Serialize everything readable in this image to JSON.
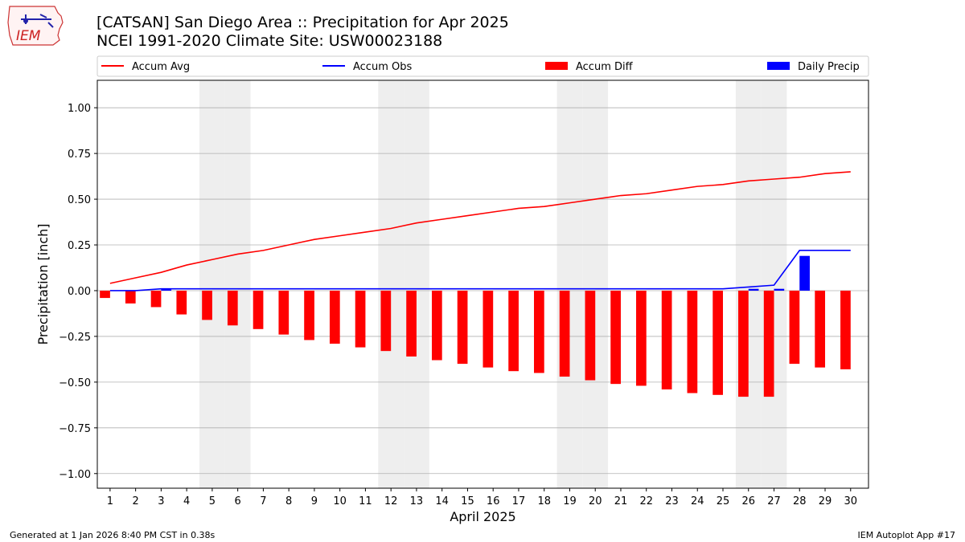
{
  "header": {
    "title_line1": "[CATSAN] San Diego Area :: Precipitation for Apr 2025",
    "title_line2": "NCEI 1991-2020 Climate Site: USW00023188"
  },
  "logo": {
    "text": "IEM"
  },
  "footer": {
    "left": "Generated at 1 Jan 2026 8:40 PM CST in 0.38s",
    "right": "IEM Autoplot App #17"
  },
  "colors": {
    "avg": "#ff0000",
    "obs": "#0000ff",
    "diff": "#ff0000",
    "daily": "#0000ff",
    "weekend": "#eeeeee",
    "grid": "#b0b0b0"
  },
  "chart_data": {
    "type": "bar",
    "xlabel": "April 2025",
    "ylabel": "Precipitation [inch]",
    "ylim": [
      -1.08,
      1.15
    ],
    "yticks": [
      "1.00",
      "0.75",
      "0.50",
      "0.25",
      "0.00",
      "−0.25",
      "−0.50",
      "−0.75",
      "−1.00"
    ],
    "ytick_values": [
      1.0,
      0.75,
      0.5,
      0.25,
      0.0,
      -0.25,
      -0.5,
      -0.75,
      -1.0
    ],
    "categories": [
      "1",
      "2",
      "3",
      "4",
      "5",
      "6",
      "7",
      "8",
      "9",
      "10",
      "11",
      "12",
      "13",
      "14",
      "15",
      "16",
      "17",
      "18",
      "19",
      "20",
      "21",
      "22",
      "23",
      "24",
      "25",
      "26",
      "27",
      "28",
      "29",
      "30"
    ],
    "weekend_days": [
      5,
      6,
      12,
      13,
      19,
      20,
      26,
      27
    ],
    "legend": [
      "Accum Avg",
      "Accum Obs",
      "Accum Diff",
      "Daily Precip"
    ],
    "series": [
      {
        "name": "Accum Avg",
        "kind": "line",
        "values": [
          0.04,
          0.07,
          0.1,
          0.14,
          0.17,
          0.2,
          0.22,
          0.25,
          0.28,
          0.3,
          0.32,
          0.34,
          0.37,
          0.39,
          0.41,
          0.43,
          0.45,
          0.46,
          0.48,
          0.5,
          0.52,
          0.53,
          0.55,
          0.57,
          0.58,
          0.6,
          0.61,
          0.62,
          0.64,
          0.65
        ]
      },
      {
        "name": "Accum Obs",
        "kind": "line",
        "values": [
          0.0,
          0.0,
          0.01,
          0.01,
          0.01,
          0.01,
          0.01,
          0.01,
          0.01,
          0.01,
          0.01,
          0.01,
          0.01,
          0.01,
          0.01,
          0.01,
          0.01,
          0.01,
          0.01,
          0.01,
          0.01,
          0.01,
          0.01,
          0.01,
          0.01,
          0.02,
          0.03,
          0.22,
          0.22,
          0.22
        ]
      },
      {
        "name": "Accum Diff",
        "kind": "bar",
        "values": [
          -0.04,
          -0.07,
          -0.09,
          -0.13,
          -0.16,
          -0.19,
          -0.21,
          -0.24,
          -0.27,
          -0.29,
          -0.31,
          -0.33,
          -0.36,
          -0.38,
          -0.4,
          -0.42,
          -0.44,
          -0.45,
          -0.47,
          -0.49,
          -0.51,
          -0.52,
          -0.54,
          -0.56,
          -0.57,
          -0.58,
          -0.58,
          -0.4,
          -0.42,
          -0.43
        ]
      },
      {
        "name": "Daily Precip",
        "kind": "bar",
        "values": [
          0,
          0,
          0.01,
          0,
          0,
          0,
          0,
          0,
          0,
          0,
          0,
          0,
          0,
          0,
          0,
          0,
          0,
          0,
          0,
          0,
          0,
          0,
          0,
          0,
          0,
          0.01,
          0.01,
          0.19,
          0,
          0
        ]
      }
    ]
  }
}
